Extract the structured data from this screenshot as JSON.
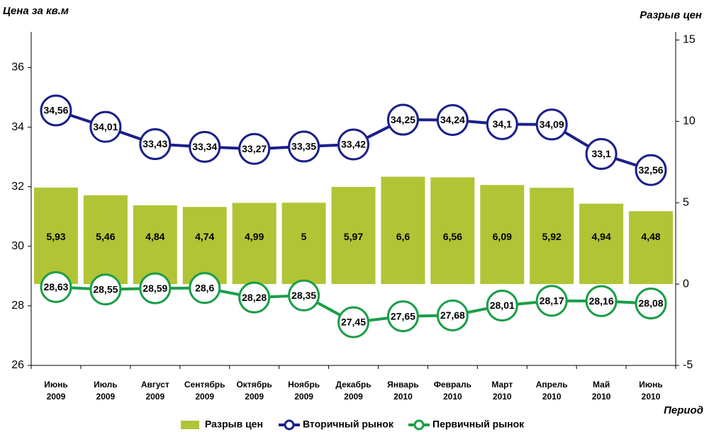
{
  "chart_data": {
    "type": "bar_line",
    "ylabel": "Цена за кв.м",
    "y2label": "Разрыв цен",
    "xlabel": "Период",
    "categories": [
      "Июнь 2009",
      "Июль 2009",
      "Август 2009",
      "Сентябрь 2009",
      "Октябрь 2009",
      "Ноябрь 2009",
      "Декабрь 2009",
      "Январь 2010",
      "Февраль 2010",
      "Март 2010",
      "Апрель 2010",
      "Май 2010",
      "Июнь 2010"
    ],
    "ylim": [
      26,
      37.2
    ],
    "yticks": [
      26,
      28,
      30,
      32,
      34,
      36
    ],
    "y2lim": [
      -5,
      15.5
    ],
    "y2ticks": [
      -5,
      0,
      5,
      10,
      15
    ],
    "series": [
      {
        "name": "Разрыв цен",
        "kind": "bar",
        "axis": "y2",
        "color": "#b1c436",
        "values": [
          5.93,
          5.46,
          4.84,
          4.74,
          4.99,
          5,
          5.97,
          6.6,
          6.56,
          6.09,
          5.92,
          4.94,
          4.48
        ],
        "value_labels": [
          "5,93",
          "5,46",
          "4,84",
          "4,74",
          "4,99",
          "5",
          "5,97",
          "6,6",
          "6,56",
          "6,09",
          "5,92",
          "4,94",
          "4,48"
        ]
      },
      {
        "name": "Вторичный рынок",
        "kind": "line",
        "color": "#1b1f8a",
        "values": [
          34.56,
          34.01,
          33.43,
          33.34,
          33.27,
          33.35,
          33.42,
          34.25,
          34.24,
          34.1,
          34.09,
          33.1,
          32.56
        ],
        "value_labels": [
          "34,56",
          "34,01",
          "33,43",
          "33,34",
          "33,27",
          "33,35",
          "33,42",
          "34,25",
          "34,24",
          "34,1",
          "34,09",
          "33,1",
          "32,56"
        ]
      },
      {
        "name": "Первичный рынок",
        "kind": "line",
        "color": "#1a9e48",
        "values": [
          28.63,
          28.55,
          28.59,
          28.6,
          28.28,
          28.35,
          27.45,
          27.65,
          27.68,
          28.01,
          28.17,
          28.16,
          28.08
        ],
        "value_labels": [
          "28,63",
          "28,55",
          "28,59",
          "28,6",
          "28,28",
          "28,35",
          "27,45",
          "27,65",
          "27,68",
          "28,01",
          "28,17",
          "28,16",
          "28,08"
        ]
      }
    ]
  }
}
